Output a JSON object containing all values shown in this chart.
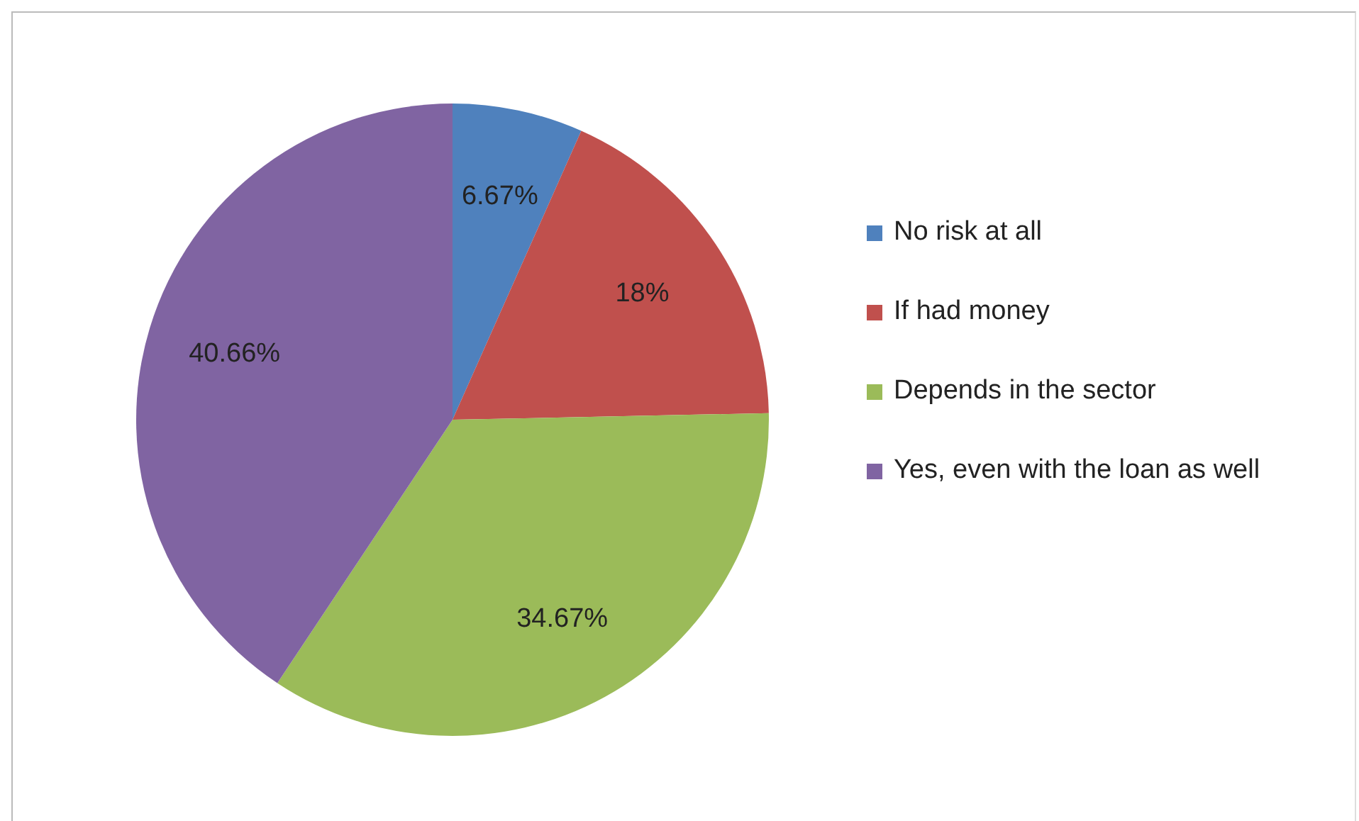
{
  "chart_data": {
    "type": "pie",
    "categories": [
      "No risk at all",
      "If had money",
      "Depends in the sector",
      "Yes, even with the loan as well"
    ],
    "values": [
      6.67,
      18,
      34.67,
      40.66
    ],
    "colors": [
      "#4f81bd",
      "#c0504d",
      "#9bbb59",
      "#8064a2"
    ],
    "value_labels": [
      "6.67%",
      "18%",
      "34.67%",
      "40.66%"
    ],
    "legend": "right"
  }
}
